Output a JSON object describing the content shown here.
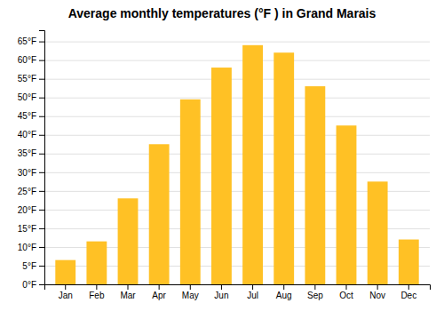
{
  "chart_data": {
    "type": "bar",
    "title": "Average monthly temperatures (°F ) in Grand Marais",
    "categories": [
      "Jan",
      "Feb",
      "Mar",
      "Apr",
      "May",
      "Jun",
      "Jul",
      "Aug",
      "Sep",
      "Oct",
      "Nov",
      "Dec"
    ],
    "values": [
      6.5,
      11.5,
      23.0,
      37.5,
      49.5,
      58.0,
      64.0,
      62.0,
      53.0,
      42.5,
      27.5,
      12.0
    ],
    "color": "#FFC125",
    "ylim": [
      0,
      68
    ],
    "yticks": [
      {
        "value": 0,
        "label": "0°F"
      },
      {
        "value": 5,
        "label": "5°F"
      },
      {
        "value": 10,
        "label": "10°F"
      },
      {
        "value": 15,
        "label": "15°F"
      },
      {
        "value": 20,
        "label": "20°F"
      },
      {
        "value": 25,
        "label": "25°F"
      },
      {
        "value": 30,
        "label": "30°F"
      },
      {
        "value": 35,
        "label": "35°F"
      },
      {
        "value": 40,
        "label": "40°F"
      },
      {
        "value": 45,
        "label": "45°F"
      },
      {
        "value": 50,
        "label": "50°F"
      },
      {
        "value": 55,
        "label": "55°F"
      },
      {
        "value": 60,
        "label": "60°F"
      },
      {
        "value": 65,
        "label": "65°F"
      }
    ],
    "grid": true
  }
}
